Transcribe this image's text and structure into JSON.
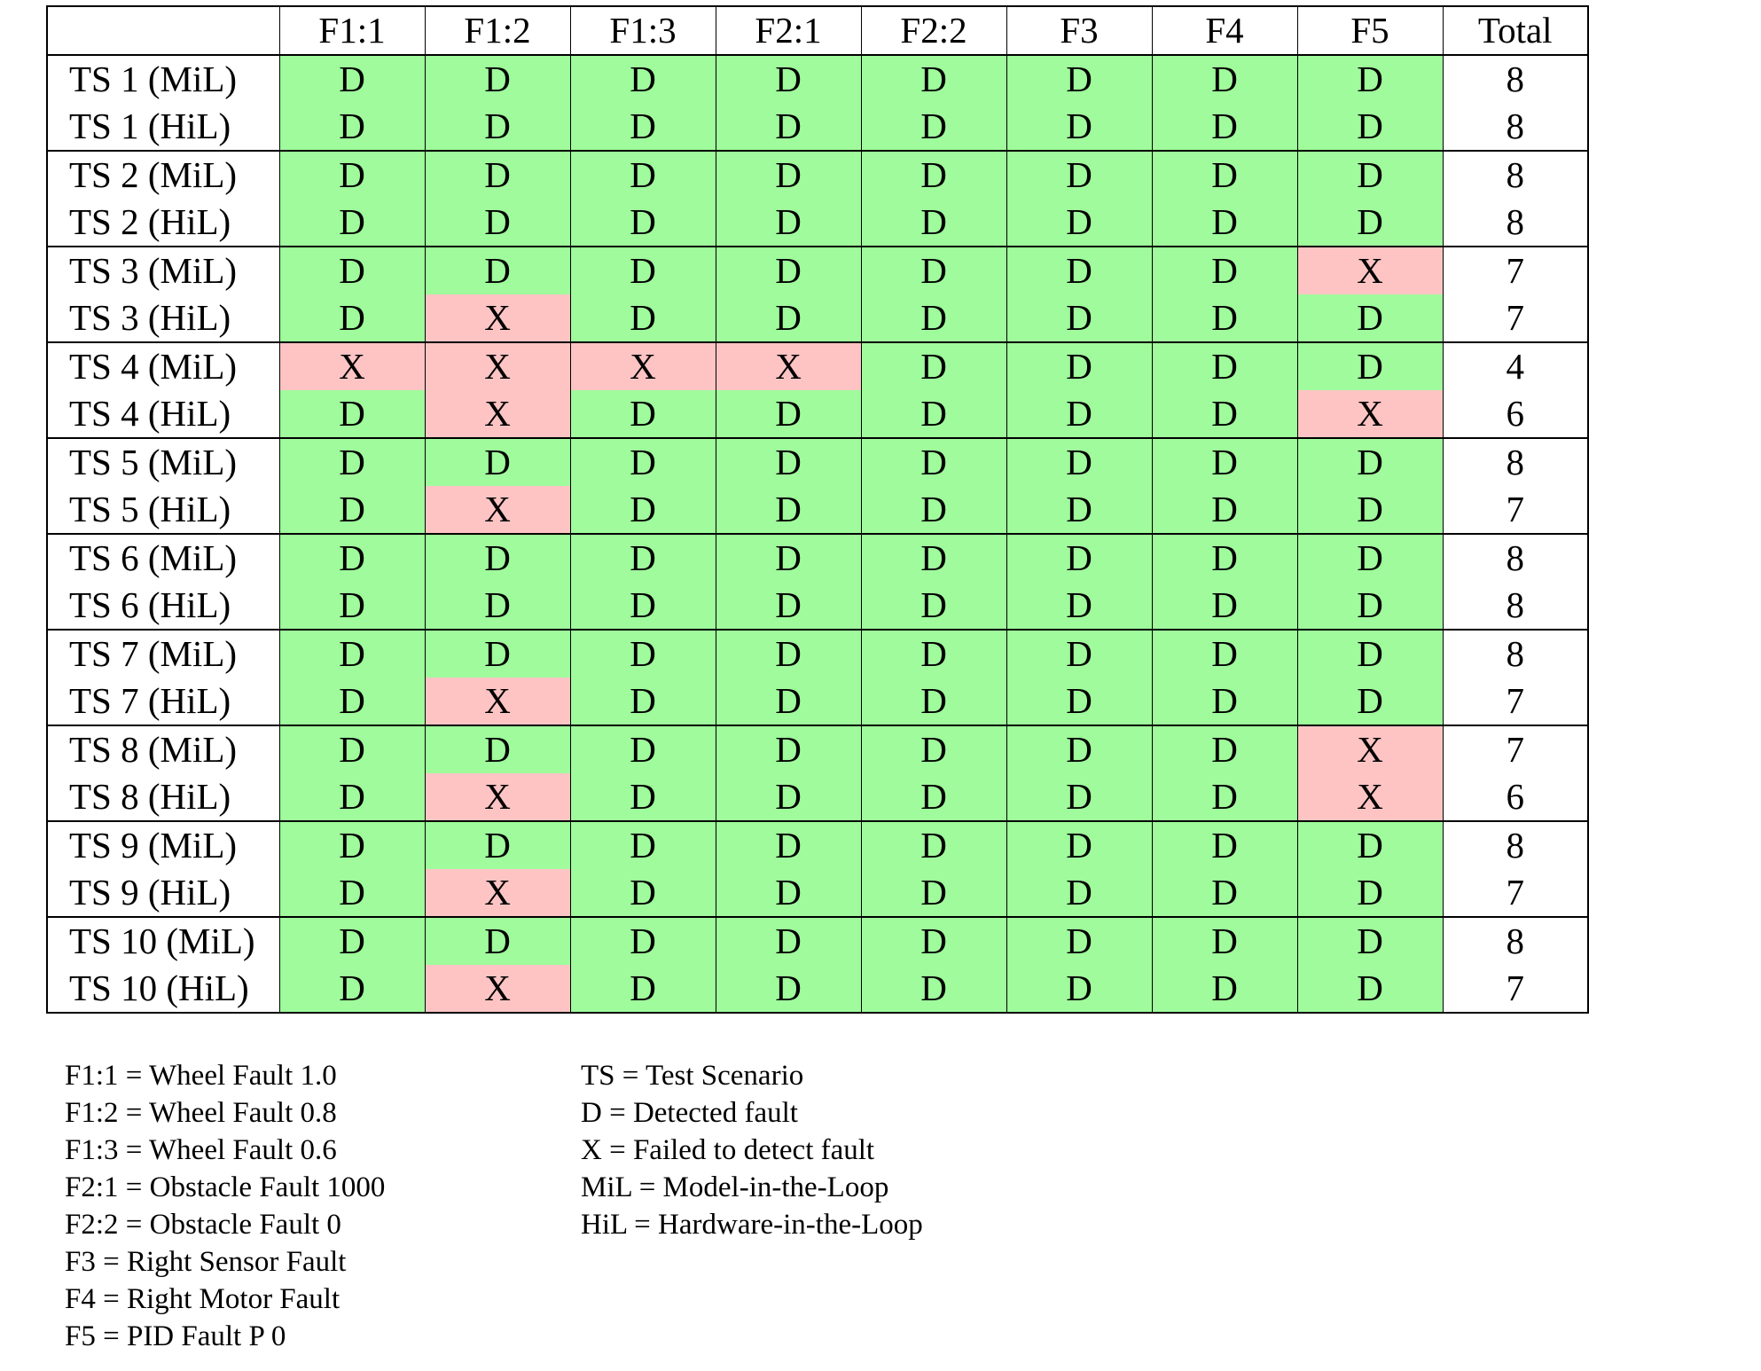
{
  "table": {
    "columns": [
      "",
      "F1:1",
      "F1:2",
      "F1:3",
      "F2:1",
      "F2:2",
      "F3",
      "F4",
      "F5",
      "Total"
    ],
    "rows": [
      {
        "label": "TS 1 (MiL)",
        "cells": [
          "D",
          "D",
          "D",
          "D",
          "D",
          "D",
          "D",
          "D"
        ],
        "total": "8"
      },
      {
        "label": "TS 1 (HiL)",
        "cells": [
          "D",
          "D",
          "D",
          "D",
          "D",
          "D",
          "D",
          "D"
        ],
        "total": "8"
      },
      {
        "label": "TS 2 (MiL)",
        "cells": [
          "D",
          "D",
          "D",
          "D",
          "D",
          "D",
          "D",
          "D"
        ],
        "total": "8"
      },
      {
        "label": "TS 2 (HiL)",
        "cells": [
          "D",
          "D",
          "D",
          "D",
          "D",
          "D",
          "D",
          "D"
        ],
        "total": "8"
      },
      {
        "label": "TS 3 (MiL)",
        "cells": [
          "D",
          "D",
          "D",
          "D",
          "D",
          "D",
          "D",
          "X"
        ],
        "total": "7"
      },
      {
        "label": "TS 3 (HiL)",
        "cells": [
          "D",
          "X",
          "D",
          "D",
          "D",
          "D",
          "D",
          "D"
        ],
        "total": "7"
      },
      {
        "label": "TS 4 (MiL)",
        "cells": [
          "X",
          "X",
          "X",
          "X",
          "D",
          "D",
          "D",
          "D"
        ],
        "total": "4"
      },
      {
        "label": "TS 4 (HiL)",
        "cells": [
          "D",
          "X",
          "D",
          "D",
          "D",
          "D",
          "D",
          "X"
        ],
        "total": "6"
      },
      {
        "label": "TS 5 (MiL)",
        "cells": [
          "D",
          "D",
          "D",
          "D",
          "D",
          "D",
          "D",
          "D"
        ],
        "total": "8"
      },
      {
        "label": "TS 5 (HiL)",
        "cells": [
          "D",
          "X",
          "D",
          "D",
          "D",
          "D",
          "D",
          "D"
        ],
        "total": "7"
      },
      {
        "label": "TS 6 (MiL)",
        "cells": [
          "D",
          "D",
          "D",
          "D",
          "D",
          "D",
          "D",
          "D"
        ],
        "total": "8"
      },
      {
        "label": "TS 6 (HiL)",
        "cells": [
          "D",
          "D",
          "D",
          "D",
          "D",
          "D",
          "D",
          "D"
        ],
        "total": "8"
      },
      {
        "label": "TS 7 (MiL)",
        "cells": [
          "D",
          "D",
          "D",
          "D",
          "D",
          "D",
          "D",
          "D"
        ],
        "total": "8"
      },
      {
        "label": "TS 7 (HiL)",
        "cells": [
          "D",
          "X",
          "D",
          "D",
          "D",
          "D",
          "D",
          "D"
        ],
        "total": "7"
      },
      {
        "label": "TS 8 (MiL)",
        "cells": [
          "D",
          "D",
          "D",
          "D",
          "D",
          "D",
          "D",
          "X"
        ],
        "total": "7"
      },
      {
        "label": "TS 8 (HiL)",
        "cells": [
          "D",
          "X",
          "D",
          "D",
          "D",
          "D",
          "D",
          "X"
        ],
        "total": "6"
      },
      {
        "label": "TS 9 (MiL)",
        "cells": [
          "D",
          "D",
          "D",
          "D",
          "D",
          "D",
          "D",
          "D"
        ],
        "total": "8"
      },
      {
        "label": "TS 9 (HiL)",
        "cells": [
          "D",
          "X",
          "D",
          "D",
          "D",
          "D",
          "D",
          "D"
        ],
        "total": "7"
      },
      {
        "label": "TS 10 (MiL)",
        "cells": [
          "D",
          "D",
          "D",
          "D",
          "D",
          "D",
          "D",
          "D"
        ],
        "total": "8"
      },
      {
        "label": "TS 10 (HiL)",
        "cells": [
          "D",
          "X",
          "D",
          "D",
          "D",
          "D",
          "D",
          "D"
        ],
        "total": "7"
      }
    ]
  },
  "legend": {
    "faults": [
      "F1:1 = Wheel Fault 1.0",
      "F1:2 = Wheel Fault 0.8",
      "F1:3 = Wheel Fault 0.6",
      "F2:1 = Obstacle Fault 1000",
      "F2:2 = Obstacle Fault 0",
      "F3 = Right Sensor Fault",
      "F4 = Right Motor Fault",
      "F5 = PID Fault P 0"
    ],
    "terms": [
      "TS = Test Scenario",
      "D = Detected fault",
      "X = Failed to detect fault",
      "MiL = Model-in-the-Loop",
      "HiL = Hardware-in-the-Loop"
    ]
  },
  "colors": {
    "detected": "#9ffb9b",
    "failed": "#fec4c4",
    "border": "#000000"
  }
}
